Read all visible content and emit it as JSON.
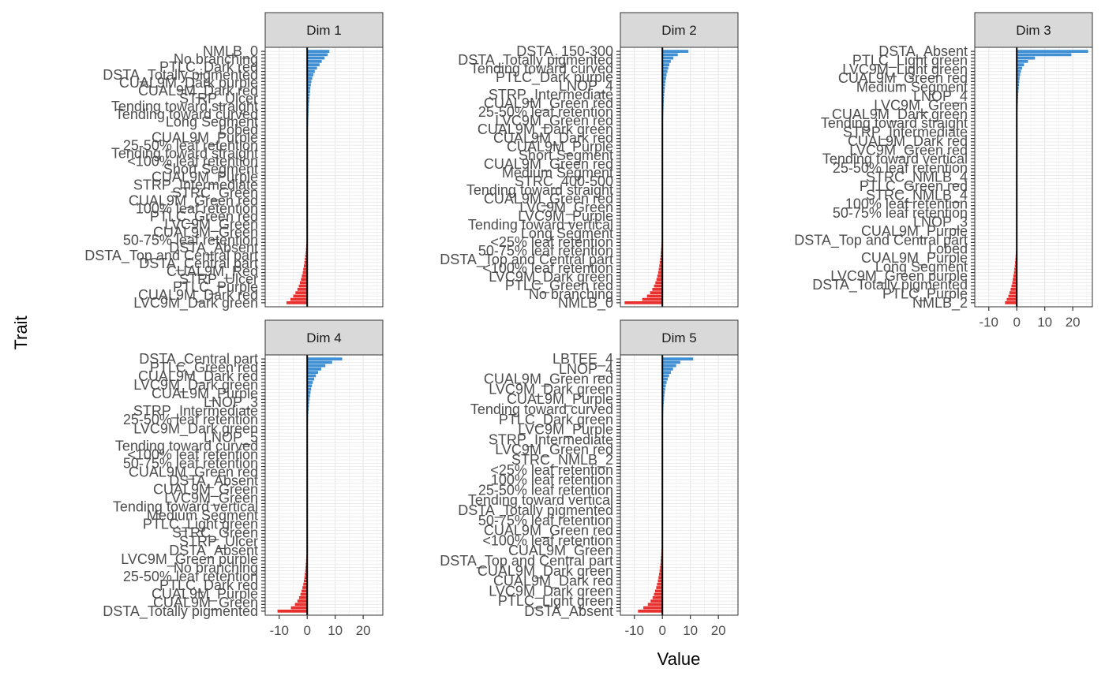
{
  "chart_data": {
    "type": "bar",
    "orientation": "horizontal",
    "xlabel": "Value",
    "ylabel": "Trait",
    "xlim": [
      -15,
      27
    ],
    "x_ticks": [
      -10,
      0,
      10,
      20
    ],
    "grid": true,
    "legend": "none",
    "colors": {
      "positive": "#3f8fd2",
      "negative": "#e8302f",
      "zero_line": "#000000",
      "panel_grid": "#ebebeb",
      "strip_bg": "#d9d9d9"
    },
    "bars_per_panel": 76,
    "panels": [
      {
        "title": "Dim 1",
        "labels": [
          "NMLB_0",
          "No branching",
          "PTLC_Dark red",
          "DSTA_Totally pigmented",
          "CUAL9M_Dark purple",
          "CUAL9M_Dark red",
          "STRP_Ulcer",
          "Tending toward straight",
          "Tending toward curved",
          "Long Segment",
          "Lobed",
          "CUAL9M_Purple",
          "25-50% leaf retention",
          "Tending toward straight",
          "<100% leaf retention",
          "Short Segment",
          "CUAL9M_Purple",
          "STRP_Intermediate",
          "STRC_Green",
          "CUAL9M_Green red",
          "100% leaf retention",
          "PTLC_Green red",
          "LVC9M_Green",
          "CUAL9M_Green",
          "50-75% leaf retention",
          "DSTA_Absent",
          "DSTA_Top and Central part",
          "DSTA_Central part",
          "CUAL9M_Red",
          "STRP_Ulcer",
          "PTLC_Purple",
          "CUAL9M_Dark red",
          "LVC9M_Dark green"
        ],
        "positives": [
          7.9,
          7.3,
          6.2,
          5.2,
          4.4,
          3.5,
          2.7,
          2.2,
          1.8,
          1.5,
          1.3,
          1.1,
          1.0,
          0.9,
          0.8,
          0.7,
          0.6,
          0.55,
          0.5,
          0.45,
          0.4,
          0.35,
          0.3,
          0.25
        ],
        "negatives": [
          -0.15,
          -0.25,
          -0.35,
          -0.45,
          -0.55,
          -0.7,
          -0.85,
          -1.0,
          -1.2,
          -1.4,
          -1.6,
          -1.9,
          -2.2,
          -2.6,
          -3.0,
          -3.5,
          -4.2,
          -5.0,
          -6.0,
          -7.4
        ]
      },
      {
        "title": "Dim 2",
        "labels": [
          "DSTA_150-300",
          "DSTA_Totally pigmented",
          "Tending toward curved",
          "PTLC_Dark purple",
          "LNOP_4",
          "STRP_Intermediate",
          "CUAL9M_Green red",
          "25-50% leaf retention",
          "LVC9M_Green red",
          "CUAL9M_Dark green",
          "CUAL9M_Dark red",
          "CUAL9M_Purple",
          "Short Segment",
          "CUAL9M_Green red",
          "Medium Segment",
          "STRC_400-500",
          "Tending toward straight",
          "CUAL9M_Green red",
          "LVC9M_Green",
          "LVC9M_Purple",
          "Tending toward vertical",
          "Long Segment",
          "<25% leaf retention",
          "50-75% leaf retention",
          "DSTA_Top and Central part",
          "<100% leaf retention",
          "LVC9M_Dark green",
          "PTLC_Green red",
          "No branching",
          "NMLB_0"
        ],
        "positives": [
          9.3,
          5.5,
          3.9,
          3.0,
          2.5,
          2.1,
          1.8,
          1.5,
          1.3,
          1.1,
          0.95,
          0.85,
          0.75,
          0.65,
          0.55,
          0.5,
          0.45,
          0.4,
          0.35,
          0.3,
          0.25
        ],
        "negatives": [
          -0.15,
          -0.25,
          -0.35,
          -0.45,
          -0.55,
          -0.65,
          -0.8,
          -0.95,
          -1.1,
          -1.3,
          -1.5,
          -1.8,
          -2.1,
          -2.5,
          -3.0,
          -3.6,
          -4.4,
          -5.5,
          -7.2,
          -13.5
        ]
      },
      {
        "title": "Dim 3",
        "labels": [
          "DSTA_Absent",
          "PTLC_Light green",
          "LVC9M_Light green",
          "CUAL9M_Green red",
          "Medium Segment",
          "LNOP_4",
          "LVC9M_Green",
          "CUAL9M_Dark green",
          "Tending toward straight",
          "STRP_Intermediate",
          "CUAL9M_Dark red",
          "LVC9M_Green red",
          "Tending toward vertical",
          "25-50% leaf retention",
          "STRC_NMLB_4",
          "PTLC_Green red",
          "STRC_NMLB_4",
          "100% leaf retention",
          "50-75% leaf retention",
          "LNOP_3",
          "CUAL9M_Purple",
          "DSTA_Top and Central part",
          "Lobed",
          "CUAL9M_Purple",
          "Long Segment",
          "LVC9M_Green purple",
          "DSTA_Totally pigmented",
          "PTLC_Purple",
          "NMLB_2"
        ],
        "positives": [
          25.5,
          19.5,
          6.5,
          4.0,
          2.6,
          1.9,
          1.5,
          1.2,
          1.0,
          0.9,
          0.8,
          0.7,
          0.6,
          0.5,
          0.45,
          0.4,
          0.35,
          0.3,
          0.25,
          0.2
        ],
        "negatives": [
          -0.12,
          -0.2,
          -0.3,
          -0.4,
          -0.5,
          -0.6,
          -0.7,
          -0.85,
          -1.0,
          -1.2,
          -1.4,
          -1.6,
          -1.9,
          -2.2,
          -2.6,
          -3.0,
          -3.6,
          -4.2
        ]
      },
      {
        "title": "Dim 4",
        "labels": [
          "DSTA_Central part",
          "PTLC_Green red",
          "CUAL9M_Dark red",
          "LVC9M_Dark green",
          "CUAL9M_Purple",
          "LNOP_3",
          "STRP_Intermediate",
          "25-50% leaf retention",
          "LVC9M_Dark green",
          "LNOP_5",
          "Tending toward curved",
          "<100% leaf retention",
          "50-75% leaf retention",
          "CUAL9M_Green red",
          "DSTA_Absent",
          "CUAL9M_Green",
          "LVC9M_Green",
          "Tending toward vertical",
          "Medium Segment",
          "PTLC_Light green",
          "STRC_Green",
          "STRP_Ulcer",
          "DSTA_Absent",
          "LVC9M_Green purple",
          "No branching",
          "25-50% leaf retention",
          "PTLC_Dark red",
          "CUAL9M_Purple",
          "CUAL9M_Green",
          "DSTA_Totally pigmented"
        ],
        "positives": [
          12.5,
          8.9,
          6.5,
          5.0,
          3.9,
          3.1,
          2.5,
          2.0,
          1.7,
          1.4,
          1.2,
          1.0,
          0.85,
          0.7,
          0.6,
          0.5,
          0.4,
          0.35,
          0.3,
          0.25
        ],
        "negatives": [
          -0.12,
          -0.2,
          -0.3,
          -0.4,
          -0.5,
          -0.6,
          -0.7,
          -0.85,
          -1.0,
          -1.2,
          -1.4,
          -1.7,
          -2.0,
          -2.4,
          -2.9,
          -3.5,
          -4.4,
          -5.8,
          -10.6
        ]
      },
      {
        "title": "Dim 5",
        "labels": [
          "LBTEE_4",
          "LNOP_4",
          "CUAL9M_Green red",
          "LVC9M_Dark green",
          "CUAL9M_Purple",
          "Tending toward curved",
          "PTLC_Dark green",
          "LVC9M_Purple",
          "STRP_Intermediate",
          "LVC9M_Green red",
          "STRC_NMLB_2",
          "<25% leaf retention",
          "100% leaf retention",
          "25-50% leaf retention",
          "Tending toward vertical",
          "DSTA_Totally pigmented",
          "50-75% leaf retention",
          "CUAL9M_Green red",
          "<100% leaf retention",
          "CUAL9M_Green",
          "DSTA_Top and Central part",
          "CUAL9M_Dark green",
          "CUAL9M_Dark red",
          "LVC9M_Dark green",
          "PTLC_Light green",
          "DSTA_Absent"
        ],
        "positives": [
          11.0,
          6.4,
          4.9,
          3.8,
          3.0,
          2.4,
          1.9,
          1.5,
          1.2,
          1.0,
          0.85,
          0.7,
          0.6,
          0.5,
          0.4,
          0.35,
          0.3,
          0.25
        ],
        "negatives": [
          -0.12,
          -0.2,
          -0.3,
          -0.4,
          -0.5,
          -0.6,
          -0.7,
          -0.85,
          -1.0,
          -1.2,
          -1.4,
          -1.6,
          -1.9,
          -2.2,
          -2.6,
          -3.0,
          -3.5,
          -4.2,
          -5.2,
          -6.8,
          -8.7
        ]
      }
    ]
  }
}
